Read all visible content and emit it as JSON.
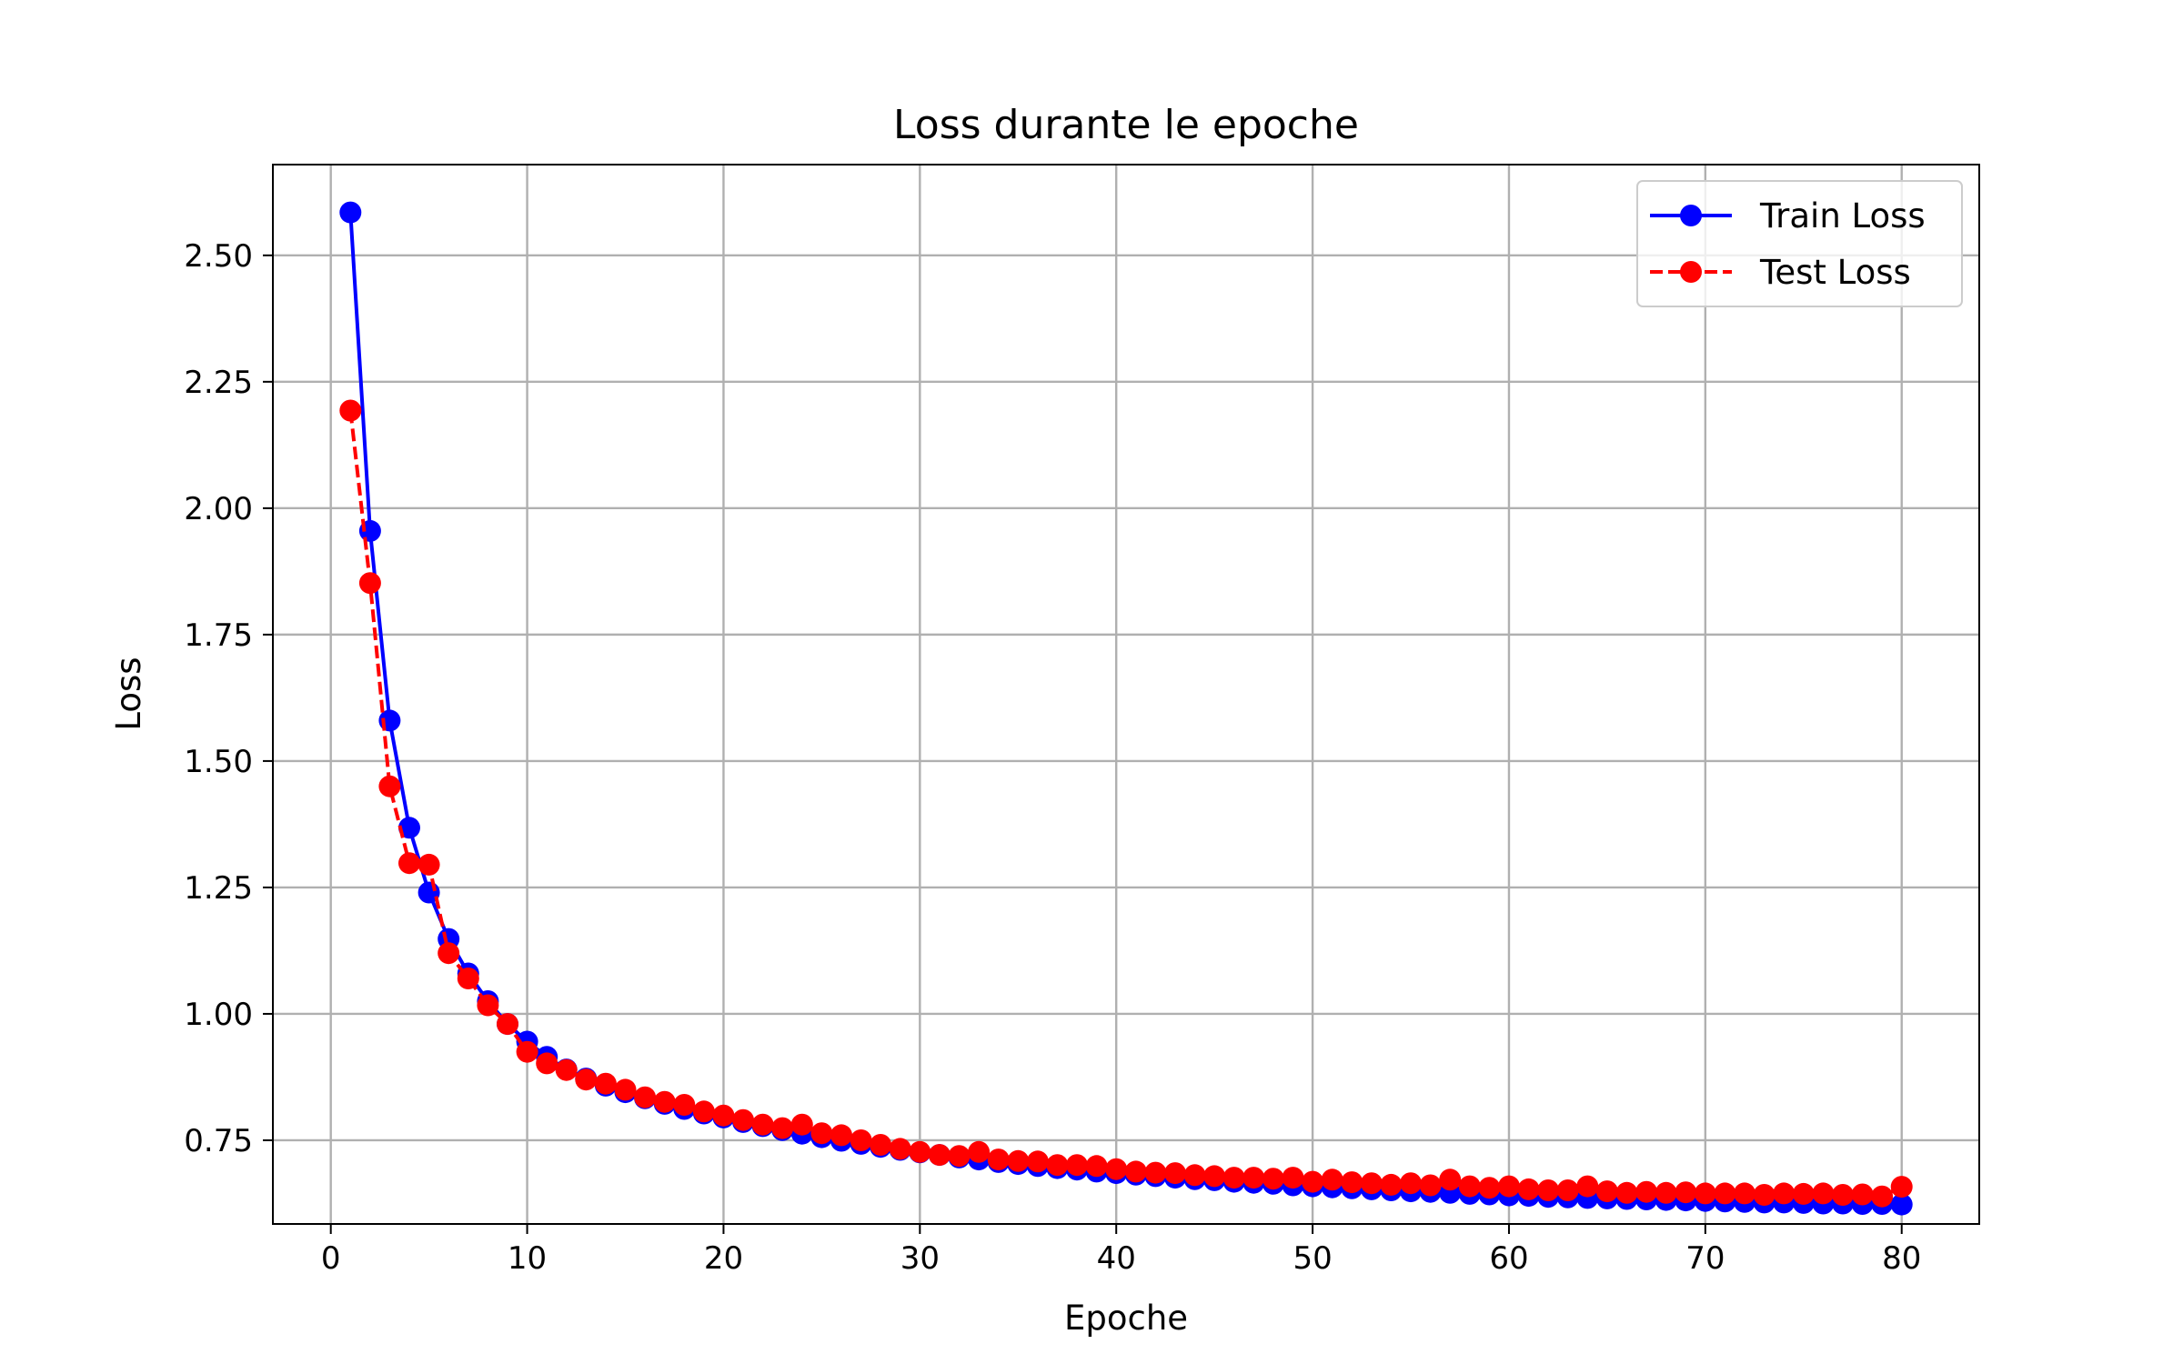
{
  "chart_data": {
    "type": "line",
    "title": "Loss durante le epoche",
    "xlabel": "Epoche",
    "ylabel": "Loss",
    "xlim": [
      -2.95,
      83.95
    ],
    "ylim": [
      0.5845,
      2.6795
    ],
    "xticks": [
      0,
      10,
      20,
      30,
      40,
      50,
      60,
      70,
      80
    ],
    "yticks": [
      0.75,
      1.0,
      1.25,
      1.5,
      1.75,
      2.0,
      2.25,
      2.5
    ],
    "ytick_labels": [
      "0.75",
      "1.00",
      "1.25",
      "1.50",
      "1.75",
      "2.00",
      "2.25",
      "2.50"
    ],
    "xtick_labels": [
      "0",
      "10",
      "20",
      "30",
      "40",
      "50",
      "60",
      "70",
      "80"
    ],
    "grid": true,
    "legend_position": "top-right",
    "x": [
      1,
      2,
      3,
      4,
      5,
      6,
      7,
      8,
      9,
      10,
      11,
      12,
      13,
      14,
      15,
      16,
      17,
      18,
      19,
      20,
      21,
      22,
      23,
      24,
      25,
      26,
      27,
      28,
      29,
      30,
      31,
      32,
      33,
      34,
      35,
      36,
      37,
      38,
      39,
      40,
      41,
      42,
      43,
      44,
      45,
      46,
      47,
      48,
      49,
      50,
      51,
      52,
      53,
      54,
      55,
      56,
      57,
      58,
      59,
      60,
      61,
      62,
      63,
      64,
      65,
      66,
      67,
      68,
      69,
      70,
      71,
      72,
      73,
      74,
      75,
      76,
      77,
      78,
      79,
      80
    ],
    "series": [
      {
        "name": "Train Loss",
        "color": "#0000ff",
        "linestyle": "solid",
        "marker": "circle",
        "values": [
          2.585,
          1.955,
          1.58,
          1.368,
          1.24,
          1.148,
          1.08,
          1.025,
          0.98,
          0.945,
          0.915,
          0.89,
          0.872,
          0.858,
          0.845,
          0.833,
          0.822,
          0.812,
          0.803,
          0.795,
          0.786,
          0.778,
          0.77,
          0.763,
          0.756,
          0.749,
          0.743,
          0.737,
          0.731,
          0.726,
          0.721,
          0.716,
          0.712,
          0.707,
          0.703,
          0.699,
          0.695,
          0.692,
          0.688,
          0.685,
          0.682,
          0.679,
          0.676,
          0.673,
          0.671,
          0.668,
          0.666,
          0.664,
          0.661,
          0.659,
          0.657,
          0.655,
          0.653,
          0.651,
          0.649,
          0.648,
          0.646,
          0.644,
          0.643,
          0.641,
          0.64,
          0.638,
          0.637,
          0.636,
          0.635,
          0.634,
          0.633,
          0.632,
          0.631,
          0.63,
          0.629,
          0.628,
          0.627,
          0.627,
          0.626,
          0.625,
          0.625,
          0.624,
          0.624,
          0.623
        ]
      },
      {
        "name": "Test Loss",
        "color": "#ff0000",
        "linestyle": "dashed",
        "marker": "circle",
        "values": [
          2.193,
          1.852,
          1.45,
          1.298,
          1.295,
          1.12,
          1.07,
          1.017,
          0.98,
          0.925,
          0.902,
          0.889,
          0.87,
          0.862,
          0.85,
          0.835,
          0.826,
          0.82,
          0.807,
          0.799,
          0.79,
          0.781,
          0.774,
          0.781,
          0.764,
          0.76,
          0.75,
          0.741,
          0.733,
          0.727,
          0.721,
          0.719,
          0.727,
          0.712,
          0.709,
          0.708,
          0.701,
          0.701,
          0.699,
          0.693,
          0.688,
          0.686,
          0.685,
          0.681,
          0.679,
          0.676,
          0.676,
          0.674,
          0.676,
          0.668,
          0.672,
          0.667,
          0.665,
          0.662,
          0.665,
          0.661,
          0.672,
          0.659,
          0.656,
          0.659,
          0.653,
          0.651,
          0.651,
          0.659,
          0.649,
          0.646,
          0.648,
          0.646,
          0.647,
          0.645,
          0.645,
          0.645,
          0.642,
          0.645,
          0.644,
          0.645,
          0.642,
          0.643,
          0.639,
          0.658
        ]
      }
    ]
  }
}
